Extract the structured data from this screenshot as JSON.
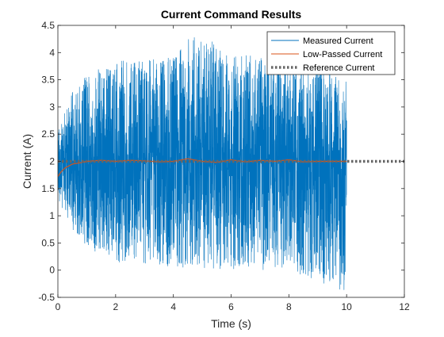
{
  "chart_data": {
    "type": "line",
    "title": "Current Command Results",
    "xlabel": "Time (s)",
    "ylabel": "Current (A)",
    "xlim": [
      0,
      12
    ],
    "ylim": [
      -0.5,
      4.5
    ],
    "x_ticks": [
      "0",
      "2",
      "4",
      "6",
      "8",
      "10",
      "12"
    ],
    "y_ticks": [
      "-0.5",
      "0",
      "0.5",
      "1",
      "1.5",
      "2",
      "2.5",
      "3",
      "3.5",
      "4",
      "4.5"
    ],
    "grid": false,
    "legend_position": "top-right",
    "series": [
      {
        "name": "Measured Current",
        "color": "#0072BD",
        "style": "solid",
        "summary": {
          "x": [
            0,
            0.5,
            1,
            2,
            4,
            4.6,
            6,
            8,
            10
          ],
          "y_max": [
            2.6,
            3.3,
            3.6,
            3.85,
            3.95,
            4.5,
            3.95,
            3.95,
            3.65
          ],
          "y_min": [
            1.3,
            0.75,
            0.35,
            0.15,
            0.05,
            0.05,
            0.0,
            0.0,
            -0.45
          ]
        }
      },
      {
        "name": "Low-Passed Current",
        "color": "#D95319",
        "style": "solid",
        "x": [
          0,
          0.1,
          0.25,
          0.5,
          0.75,
          1.0,
          1.5,
          2,
          2.5,
          3,
          3.5,
          4,
          4.5,
          5,
          5.5,
          6,
          6.5,
          7,
          7.5,
          8,
          8.5,
          9,
          9.5,
          10
        ],
        "y": [
          1.72,
          1.8,
          1.88,
          1.95,
          1.97,
          2.0,
          2.02,
          2.0,
          2.02,
          2.01,
          1.99,
          2.0,
          2.05,
          2.0,
          1.98,
          2.03,
          1.99,
          2.02,
          2.0,
          2.03,
          1.99,
          2.0,
          2.0,
          2.0
        ]
      },
      {
        "name": "Reference Current",
        "color": "#666666",
        "style": "dotted",
        "x": [
          0,
          12
        ],
        "y": [
          2,
          2
        ]
      }
    ]
  }
}
